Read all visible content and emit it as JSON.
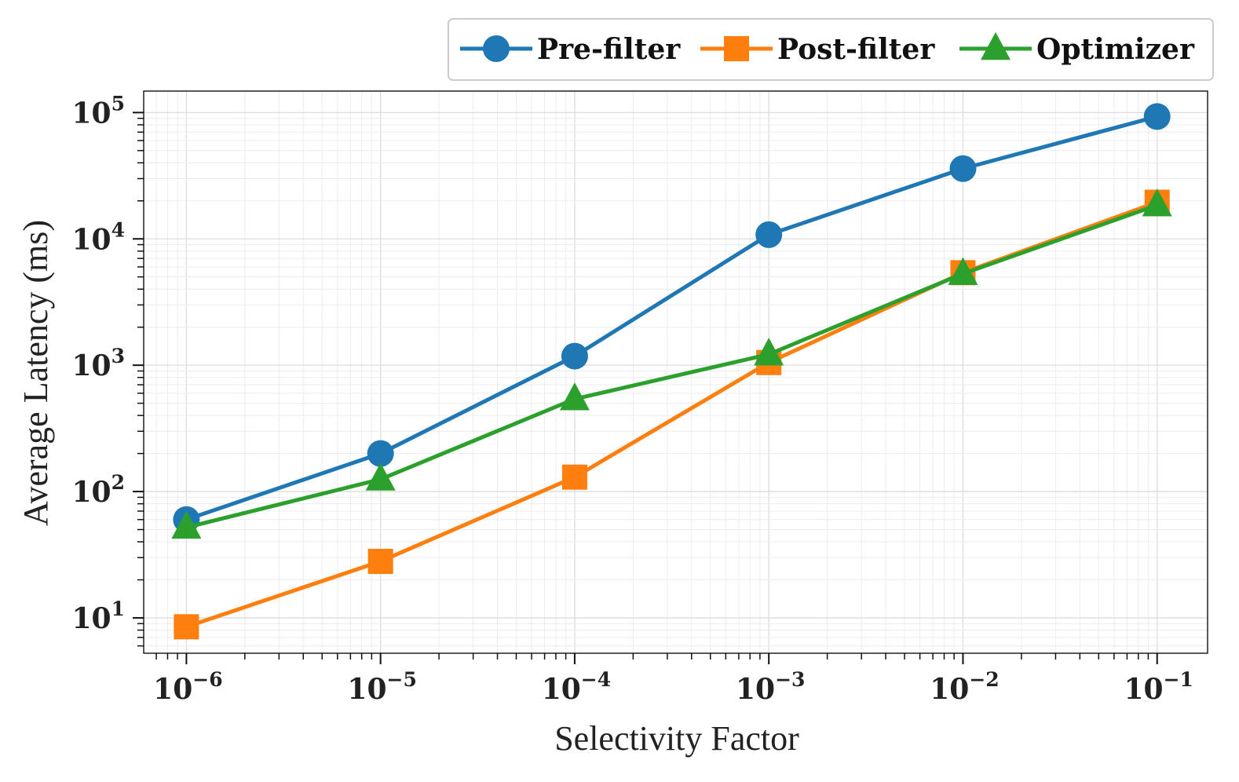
{
  "chart_data": {
    "type": "line",
    "title": "",
    "xlabel": "Selectivity Factor",
    "ylabel": "Average Latency (ms)",
    "xscale": "log",
    "yscale": "log",
    "x_exponents": [
      -6,
      -5,
      -4,
      -3,
      -2,
      -1
    ],
    "x": [
      1e-06,
      1e-05,
      0.0001,
      0.001,
      0.01,
      0.1
    ],
    "x_tick_labels": [
      {
        "base": "10",
        "exp": "−6"
      },
      {
        "base": "10",
        "exp": "−5"
      },
      {
        "base": "10",
        "exp": "−4"
      },
      {
        "base": "10",
        "exp": "−3"
      },
      {
        "base": "10",
        "exp": "−2"
      },
      {
        "base": "10",
        "exp": "−1"
      }
    ],
    "y_tick_labels": [
      {
        "base": "10",
        "exp": "1",
        "value": 10
      },
      {
        "base": "10",
        "exp": "2",
        "value": 100
      },
      {
        "base": "10",
        "exp": "3",
        "value": 1000
      },
      {
        "base": "10",
        "exp": "4",
        "value": 10000
      },
      {
        "base": "10",
        "exp": "5",
        "value": 100000
      }
    ],
    "xlim_log10": [
      -6.22,
      -0.74
    ],
    "ylim_log10": [
      0.72,
      5.17
    ],
    "grid": true,
    "legend_position": "top-right, above plot",
    "series": [
      {
        "name": "Pre-filter",
        "color": "#1f77b4",
        "marker": "circle",
        "values": [
          60,
          200,
          1180,
          10800,
          36000,
          93000
        ]
      },
      {
        "name": "Post-filter",
        "color": "#ff7f0e",
        "marker": "square",
        "values": [
          8.5,
          28,
          130,
          1050,
          5400,
          19500
        ]
      },
      {
        "name": "Optimizer",
        "color": "#2ca02c",
        "marker": "triangle",
        "values": [
          52,
          125,
          540,
          1220,
          5300,
          18500
        ]
      }
    ]
  }
}
